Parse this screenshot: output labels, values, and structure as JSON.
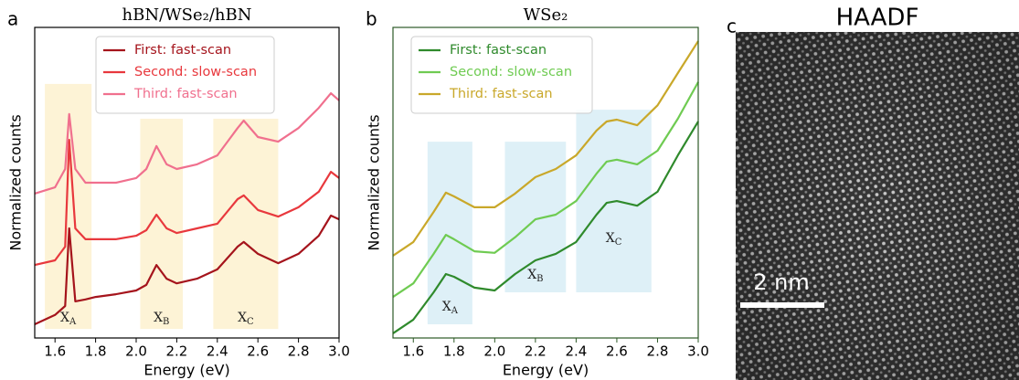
{
  "chart_data": [
    {
      "type": "line",
      "panel_label": "a",
      "title": "hBN/WSe₂/hBN",
      "xlabel": "Energy (eV)",
      "ylabel": "Normalized counts",
      "xlim": [
        1.5,
        3.0
      ],
      "ylim": [
        0,
        100
      ],
      "xticks": [
        1.6,
        1.8,
        {
          "value": 2,
          "label": "2.0"
        },
        2.2,
        2.4,
        2.6,
        2.8,
        {
          "value": 3,
          "label": "3.0"
        }
      ],
      "legend": "upper center",
      "axes_color": "#000000",
      "region_color": "#fdf3d6",
      "x": [
        1.5,
        1.6,
        1.65,
        1.67,
        1.7,
        1.75,
        1.8,
        1.9,
        2.0,
        2.05,
        2.1,
        2.15,
        2.2,
        2.3,
        2.4,
        2.5,
        2.53,
        2.6,
        2.7,
        2.8,
        2.9,
        2.96,
        3.0
      ],
      "series": [
        {
          "name": "First: fast-scan",
          "color": "#a5141c",
          "values": [
            4.4,
            7.4,
            10.3,
            35.3,
            11.8,
            12.4,
            13.2,
            14.1,
            15.3,
            17.1,
            23.5,
            19.1,
            17.6,
            19.1,
            22.1,
            29.4,
            30.9,
            27.1,
            24.1,
            27.1,
            32.9,
            39.4,
            38.2
          ]
        },
        {
          "name": "Second: slow-scan",
          "color": "#e8383d",
          "values": [
            23.5,
            25.0,
            29.4,
            63.8,
            35.3,
            31.8,
            31.8,
            31.8,
            32.9,
            34.7,
            39.7,
            35.3,
            33.8,
            35.3,
            36.8,
            44.7,
            45.9,
            41.2,
            39.1,
            42.1,
            47.1,
            53.5,
            51.5
          ]
        },
        {
          "name": "Third: fast-scan",
          "color": "#f0708e",
          "values": [
            46.5,
            48.5,
            54.4,
            72.1,
            54.4,
            50.0,
            50.0,
            50.0,
            51.5,
            54.4,
            61.8,
            55.9,
            54.4,
            55.9,
            58.8,
            67.6,
            70.0,
            64.7,
            63.2,
            67.6,
            74.1,
            78.8,
            76.5
          ]
        }
      ],
      "regions": [
        {
          "label": "X",
          "sub": "A",
          "x0": 1.55,
          "x1": 1.78,
          "y0": 2.9,
          "y1": 81.8,
          "label_y": 5.3
        },
        {
          "label": "X",
          "sub": "B",
          "x0": 2.02,
          "x1": 2.23,
          "y0": 2.9,
          "y1": 70.6,
          "label_y": 5.3
        },
        {
          "label": "X",
          "sub": "C",
          "x0": 2.38,
          "x1": 2.7,
          "y0": 2.9,
          "y1": 70.6,
          "label_y": 5.3
        }
      ]
    },
    {
      "type": "line",
      "panel_label": "b",
      "title": "WSe₂",
      "xlabel": "Energy (eV)",
      "ylabel": "Normalized counts",
      "xlim": [
        1.5,
        3.0
      ],
      "ylim": [
        0,
        100
      ],
      "xticks": [
        1.6,
        1.8,
        {
          "value": 2,
          "label": "2.0"
        },
        2.2,
        2.4,
        2.6,
        2.8,
        {
          "value": 3,
          "label": "3.0"
        }
      ],
      "legend": "upper left",
      "axes_color": "#2d5a27",
      "region_color": "#def0f7",
      "x": [
        1.5,
        1.6,
        1.7,
        1.76,
        1.8,
        1.9,
        2.0,
        2.1,
        2.2,
        2.3,
        2.4,
        2.5,
        2.55,
        2.6,
        2.7,
        2.8,
        2.9,
        3.0
      ],
      "series": [
        {
          "name": "First: fast-scan",
          "color": "#2f8a2c",
          "values": [
            1.5,
            5.9,
            14.7,
            20.6,
            19.7,
            16.2,
            15.3,
            20.6,
            25.0,
            27.1,
            30.9,
            39.7,
            43.5,
            44.1,
            42.6,
            47.1,
            58.8,
            69.7
          ]
        },
        {
          "name": "Second: slow-scan",
          "color": "#6fcb52",
          "values": [
            13.2,
            17.6,
            27.1,
            33.2,
            31.8,
            27.9,
            27.4,
            32.4,
            38.2,
            39.7,
            44.1,
            52.9,
            56.8,
            57.4,
            55.9,
            60.3,
            70.6,
            82.4
          ]
        },
        {
          "name": "Third: fast-scan",
          "color": "#c9a82a",
          "values": [
            26.5,
            30.9,
            40.6,
            46.8,
            45.6,
            42.1,
            42.1,
            46.5,
            51.8,
            54.4,
            58.8,
            66.8,
            69.7,
            70.3,
            68.5,
            74.9,
            85.3,
            95.6
          ]
        }
      ],
      "regions": [
        {
          "label": "X",
          "sub": "A",
          "x0": 1.67,
          "x1": 1.89,
          "y0": 4.4,
          "y1": 63.2,
          "label_y": 8.8
        },
        {
          "label": "X",
          "sub": "B",
          "x0": 2.05,
          "x1": 2.35,
          "y0": 14.7,
          "y1": 63.2,
          "label_y": 19.1
        },
        {
          "label": "X",
          "sub": "C",
          "x0": 2.4,
          "x1": 2.77,
          "y0": 14.7,
          "y1": 73.5,
          "label_y": 30.9
        }
      ]
    }
  ],
  "image_panel": {
    "panel_label": "c",
    "title": "HAADF",
    "scale_bar": "2 nm"
  }
}
